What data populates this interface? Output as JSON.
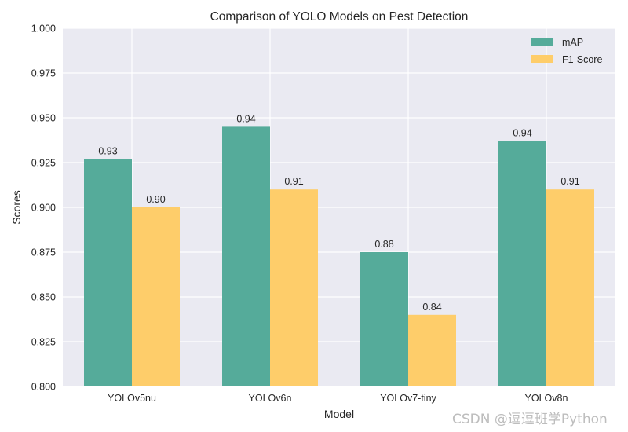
{
  "chart_data": {
    "type": "bar",
    "title": "Comparison of YOLO Models on Pest Detection",
    "xlabel": "Model",
    "ylabel": "Scores",
    "categories": [
      "YOLOv5nu",
      "YOLOv6n",
      "YOLOv7-tiny",
      "YOLOv8n"
    ],
    "series": [
      {
        "name": "mAP",
        "color": "#55ab9a",
        "values": [
          0.927,
          0.945,
          0.875,
          0.937
        ],
        "labels": [
          "0.93",
          "0.94",
          "0.88",
          "0.94"
        ]
      },
      {
        "name": "F1-Score",
        "color": "#fecd6a",
        "values": [
          0.9,
          0.91,
          0.84,
          0.91
        ],
        "labels": [
          "0.90",
          "0.91",
          "0.84",
          "0.91"
        ]
      }
    ],
    "ylim": [
      0.8,
      1.0
    ],
    "yticks": [
      "0.800",
      "0.825",
      "0.850",
      "0.875",
      "0.900",
      "0.925",
      "0.950",
      "0.975",
      "1.000"
    ],
    "legend_position": "top-right",
    "grid": true,
    "plot_background": "#eaeaf2",
    "grid_color": "#ffffff"
  },
  "watermark": "CSDN @逗逗班学Python"
}
